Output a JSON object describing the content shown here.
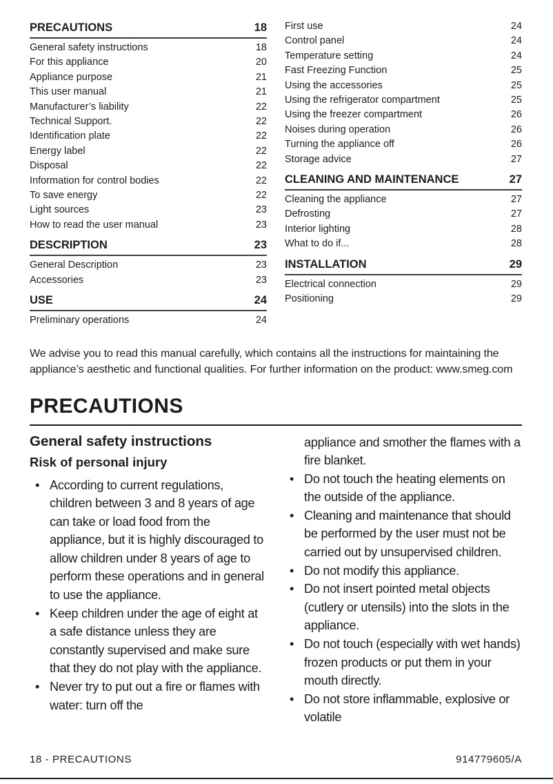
{
  "toc": {
    "left": [
      {
        "type": "header",
        "label": "PRECAUTIONS",
        "page": "18"
      },
      {
        "type": "entry",
        "label": "General safety instructions",
        "page": "18"
      },
      {
        "type": "entry",
        "label": "For this appliance",
        "page": "20"
      },
      {
        "type": "entry",
        "label": "Appliance purpose",
        "page": "21"
      },
      {
        "type": "entry",
        "label": "This user manual",
        "page": "21"
      },
      {
        "type": "entry",
        "label": "Manufacturer’s liability",
        "page": "22"
      },
      {
        "type": "entry",
        "label": "Technical Support.",
        "page": "22"
      },
      {
        "type": "entry",
        "label": "Identification plate",
        "page": "22"
      },
      {
        "type": "entry",
        "label": "Energy label",
        "page": "22"
      },
      {
        "type": "entry",
        "label": "Disposal",
        "page": "22"
      },
      {
        "type": "entry",
        "label": "Information for control bodies",
        "page": "22"
      },
      {
        "type": "entry",
        "label": "To save energy",
        "page": "22"
      },
      {
        "type": "entry",
        "label": "Light sources",
        "page": "23"
      },
      {
        "type": "entry",
        "label": "How to read the user manual",
        "page": "23"
      },
      {
        "type": "header",
        "label": "DESCRIPTION",
        "page": "23"
      },
      {
        "type": "entry",
        "label": "General Description",
        "page": "23"
      },
      {
        "type": "entry",
        "label": "Accessories",
        "page": "23"
      },
      {
        "type": "header",
        "label": "USE",
        "page": "24"
      },
      {
        "type": "entry",
        "label": "Preliminary operations",
        "page": "24"
      }
    ],
    "right": [
      {
        "type": "entry",
        "label": "First use",
        "page": "24"
      },
      {
        "type": "entry",
        "label": "Control panel",
        "page": "24"
      },
      {
        "type": "entry",
        "label": "Temperature setting",
        "page": "24"
      },
      {
        "type": "entry",
        "label": "Fast Freezing Function",
        "page": "25"
      },
      {
        "type": "entry",
        "label": "Using the accessories",
        "page": "25"
      },
      {
        "type": "entry",
        "label": "Using the refrigerator compartment",
        "page": "25"
      },
      {
        "type": "entry",
        "label": "Using the freezer compartment",
        "page": "26"
      },
      {
        "type": "entry",
        "label": "Noises during operation",
        "page": "26"
      },
      {
        "type": "entry",
        "label": "Turning the appliance off",
        "page": "26"
      },
      {
        "type": "entry",
        "label": "Storage advice",
        "page": "27"
      },
      {
        "type": "header",
        "label": "CLEANING AND MAINTENANCE",
        "page": "27"
      },
      {
        "type": "entry",
        "label": "Cleaning the appliance",
        "page": "27"
      },
      {
        "type": "entry",
        "label": "Defrosting",
        "page": "27"
      },
      {
        "type": "entry",
        "label": "Interior lighting",
        "page": "28"
      },
      {
        "type": "entry",
        "label": "What to do if...",
        "page": "28"
      },
      {
        "type": "header",
        "label": "INSTALLATION",
        "page": "29"
      },
      {
        "type": "entry",
        "label": "Electrical connection",
        "page": "29"
      },
      {
        "type": "entry",
        "label": "Positioning",
        "page": "29"
      }
    ]
  },
  "intro": "We advise you to read this manual carefully, which contains all the instructions for maintaining the appliance’s aesthetic and functional qualities. For further information on the product: www.smeg.com",
  "section": {
    "title": "PRECAUTIONS",
    "subsection": "General safety instructions",
    "risk_heading": "Risk of personal injury",
    "bullets_left": [
      "According to current regulations, children between 3 and 8 years of age can take or load food from the appliance, but it is highly discouraged to allow children under 8 years of age to perform these operations and in general to use the appliance.",
      "Keep children under the age of eight at a safe distance unless they are constantly supervised and make sure that they do not play with the appliance.",
      "Never try to put out a fire or flames with water: turn off the"
    ],
    "continuation": "appliance and smother the flames with a fire blanket.",
    "bullets_right": [
      "Do not touch the heating elements on the outside of the appliance.",
      "Cleaning and maintenance that should be performed by the user must not be carried out by unsupervised children.",
      "Do not modify this appliance.",
      "Do not insert pointed metal objects (cutlery or utensils) into the slots in the appliance.",
      "Do not touch (especially with wet hands) frozen products or put them in your mouth directly.",
      "Do not store inflammable, explosive or volatile"
    ]
  },
  "footer": {
    "left": "18 - PRECAUTIONS",
    "right": "914779605/A"
  },
  "colors": {
    "text": "#1c1c1c",
    "rule": "#3d3d3d",
    "background": "#ffffff"
  }
}
